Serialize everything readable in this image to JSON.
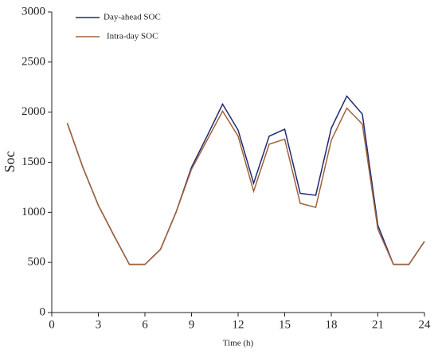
{
  "chart_data": {
    "type": "line",
    "x": [
      1,
      2,
      3,
      4,
      5,
      6,
      7,
      8,
      9,
      10,
      11,
      12,
      13,
      14,
      15,
      16,
      17,
      18,
      19,
      20,
      21,
      22,
      23,
      24
    ],
    "series": [
      {
        "name": "Day-ahead SOC",
        "color": "#1f2a6e",
        "values": [
          1890,
          1450,
          1070,
          770,
          480,
          480,
          630,
          1000,
          1450,
          1760,
          2080,
          1820,
          1290,
          1760,
          1830,
          1190,
          1170,
          1840,
          2160,
          1980,
          870,
          480,
          480,
          710
        ]
      },
      {
        "name": "Intra-day SOC",
        "color": "#a0623a",
        "values": [
          1890,
          1450,
          1070,
          770,
          480,
          480,
          630,
          1000,
          1430,
          1720,
          2010,
          1760,
          1210,
          1680,
          1730,
          1090,
          1050,
          1720,
          2040,
          1880,
          830,
          480,
          480,
          710
        ]
      }
    ],
    "xlabel": "Time (h)",
    "ylabel": "Soc",
    "xlim": [
      0,
      24
    ],
    "xticks": [
      0,
      3,
      6,
      9,
      12,
      15,
      18,
      21,
      24
    ],
    "ylim": [
      0,
      3000
    ],
    "yticks": [
      0,
      500,
      1000,
      1500,
      2000,
      2500,
      3000
    ],
    "legend": "upper left"
  }
}
